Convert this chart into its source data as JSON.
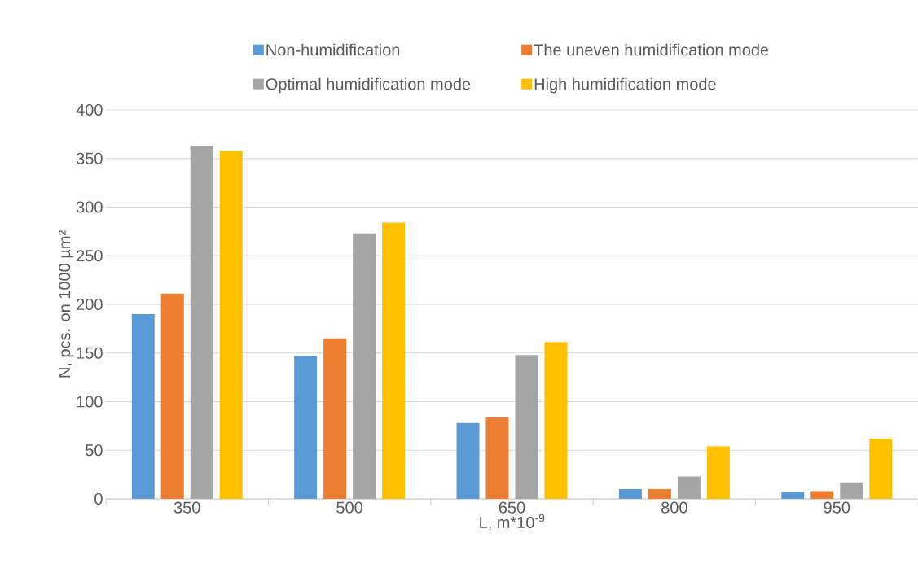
{
  "chart_data": {
    "type": "bar",
    "xlabel": "L, m*10$^{-9}$",
    "ylabel": "N, pcs. on 1000 µm²",
    "categories": [
      "350",
      "500",
      "650",
      "800",
      "950"
    ],
    "series": [
      {
        "name": "Non-humidification",
        "color": "#5b9bd5",
        "values": [
          190,
          147,
          78,
          10,
          7
        ]
      },
      {
        "name": "The uneven humidification mode",
        "color": "#ed7d31",
        "values": [
          211,
          165,
          84,
          10,
          8
        ]
      },
      {
        "name": "Optimal humidification mode",
        "color": "#a5a5a5",
        "values": [
          363,
          273,
          148,
          23,
          17
        ]
      },
      {
        "name": "High humidification mode",
        "color": "#ffc000",
        "values": [
          358,
          284,
          161,
          54,
          62
        ]
      }
    ],
    "ylim": [
      0,
      400
    ],
    "yticks": [
      0,
      50,
      100,
      150,
      200,
      250,
      300,
      350,
      400
    ],
    "grid": "y",
    "legend": "top"
  }
}
